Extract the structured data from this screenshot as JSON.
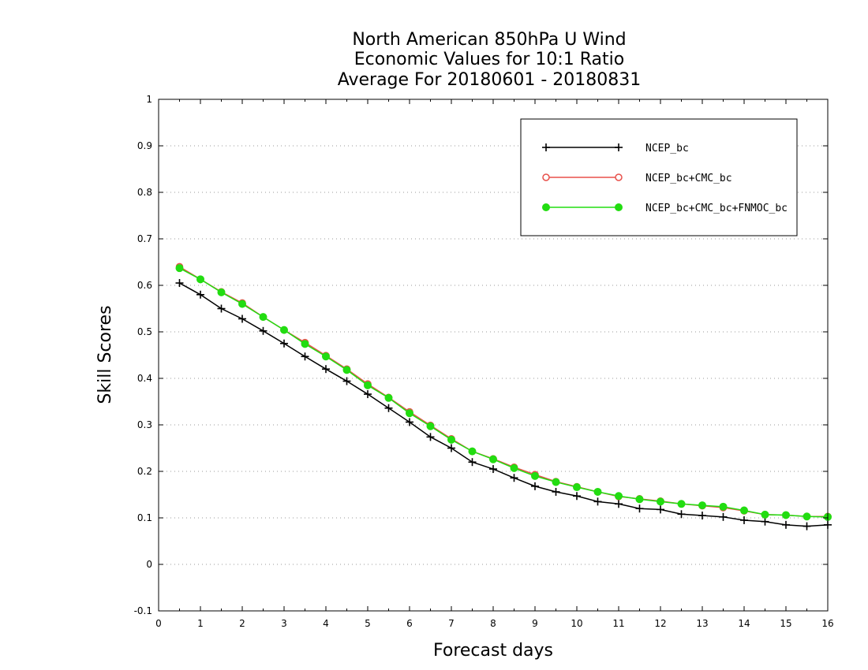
{
  "chart_data": {
    "type": "line",
    "title": [
      "North American 850hPa U Wind",
      "Economic Values for 10:1 Ratio",
      "Average For 20180601 - 20180831"
    ],
    "xlabel": "Forecast days",
    "ylabel": "Skill Scores",
    "xlim": [
      0,
      16
    ],
    "ylim": [
      -0.1,
      1
    ],
    "x_ticks": [
      "0",
      "1",
      "2",
      "3",
      "4",
      "5",
      "6",
      "7",
      "8",
      "9",
      "10",
      "11",
      "12",
      "13",
      "14",
      "15",
      "16"
    ],
    "y_ticks": [
      "-0.1",
      "0",
      "0.1",
      "0.2",
      "0.3",
      "0.4",
      "0.5",
      "0.6",
      "0.7",
      "0.8",
      "0.9",
      "1"
    ],
    "grid": true,
    "legend_position": "top-right",
    "x": [
      0.5,
      1,
      1.5,
      2,
      2.5,
      3,
      3.5,
      4,
      4.5,
      5,
      5.5,
      6,
      6.5,
      7,
      7.5,
      8,
      8.5,
      9,
      9.5,
      10,
      10.5,
      11,
      11.5,
      12,
      12.5,
      13,
      13.5,
      14,
      14.5,
      15,
      15.5,
      16
    ],
    "series": [
      {
        "name": "NCEP_bc",
        "color": "#000000",
        "marker": "plus",
        "values": [
          0.605,
          0.58,
          0.55,
          0.528,
          0.502,
          0.475,
          0.447,
          0.42,
          0.394,
          0.366,
          0.336,
          0.306,
          0.274,
          0.25,
          0.22,
          0.205,
          0.186,
          0.168,
          0.156,
          0.147,
          0.135,
          0.13,
          0.12,
          0.118,
          0.108,
          0.105,
          0.102,
          0.095,
          0.092,
          0.085,
          0.082,
          0.085
        ]
      },
      {
        "name": "NCEP_bc+CMC_bc",
        "color": "#e8504a",
        "marker": "open-circle",
        "values": [
          0.64,
          0.613,
          0.586,
          0.562,
          0.532,
          0.504,
          0.477,
          0.449,
          0.42,
          0.388,
          0.359,
          0.328,
          0.299,
          0.27,
          0.243,
          0.227,
          0.209,
          0.193,
          0.178,
          0.167,
          0.156,
          0.146,
          0.141,
          0.136,
          0.13,
          0.126,
          0.122,
          0.115,
          0.107,
          0.106,
          0.103,
          0.103
        ]
      },
      {
        "name": "NCEP_bc+CMC_bc+FNMOC_bc",
        "color": "#22dd11",
        "marker": "filled-circle",
        "values": [
          0.637,
          0.613,
          0.585,
          0.56,
          0.532,
          0.504,
          0.474,
          0.447,
          0.418,
          0.385,
          0.358,
          0.325,
          0.297,
          0.268,
          0.243,
          0.226,
          0.207,
          0.19,
          0.177,
          0.166,
          0.156,
          0.147,
          0.14,
          0.135,
          0.13,
          0.127,
          0.124,
          0.116,
          0.107,
          0.106,
          0.103,
          0.102
        ]
      }
    ]
  }
}
